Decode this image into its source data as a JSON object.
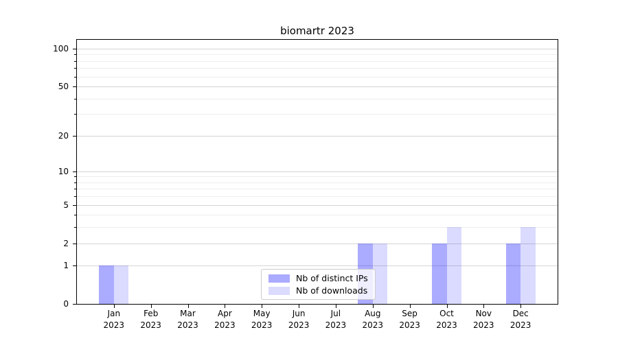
{
  "chart_data": {
    "type": "bar",
    "title": "biomartr 2023",
    "categories": [
      "Jan",
      "Feb",
      "Mar",
      "Apr",
      "May",
      "Jun",
      "Jul",
      "Aug",
      "Sep",
      "Oct",
      "Nov",
      "Dec"
    ],
    "year_label": "2023",
    "series": [
      {
        "name": "Nb of distinct IPs",
        "color": "rgba(0,0,255,0.33)",
        "approx_hex": "#aaaafa",
        "values": [
          1,
          0,
          0,
          0,
          0,
          0,
          0,
          2,
          0,
          2,
          0,
          2
        ]
      },
      {
        "name": "Nb of downloads",
        "color": "rgba(0,0,255,0.14)",
        "approx_hex": "#dadaf9",
        "values": [
          1,
          0,
          0,
          0,
          0,
          0,
          0,
          2,
          0,
          3,
          0,
          3
        ]
      }
    ],
    "y_axis": {
      "scale": "log1p",
      "ticks": [
        0,
        1,
        2,
        5,
        10,
        20,
        50,
        100
      ],
      "minor_ticks": [
        3,
        4,
        6,
        7,
        8,
        9,
        30,
        40,
        60,
        70,
        80,
        90
      ],
      "ylim": [
        0,
        118
      ]
    },
    "xlabel": "",
    "ylabel": "",
    "grid": true,
    "legend_position": "lower center",
    "colors": {
      "major_grid": "#d4d4d4",
      "minor_grid": "#ededed",
      "spine": "#000000",
      "legend_border": "#cccccc"
    }
  }
}
